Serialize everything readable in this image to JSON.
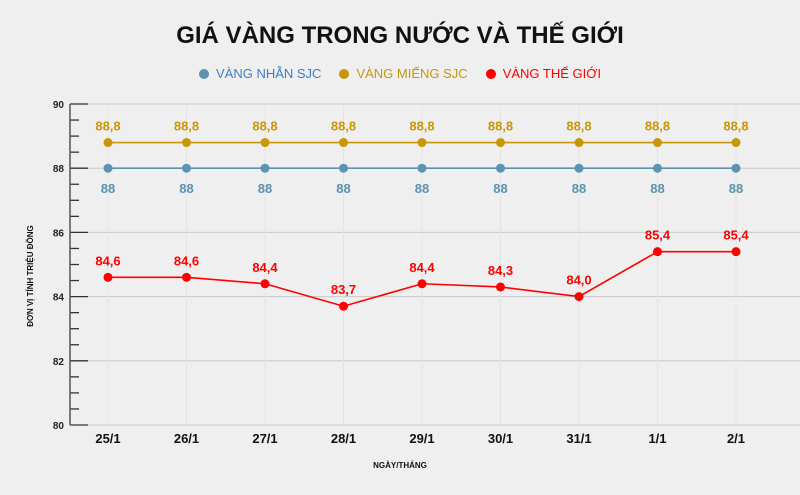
{
  "chart_data": {
    "type": "line",
    "title": "GIÁ VÀNG TRONG NƯỚC VÀ THẾ GIỚI",
    "xlabel": "NGÀY/THÁNG",
    "ylabel": "ĐƠN VỊ TÍNH TRIỆU ĐỒNG",
    "categories": [
      "25/1",
      "26/1",
      "27/1",
      "28/1",
      "29/1",
      "30/1",
      "31/1",
      "1/1",
      "2/1"
    ],
    "ylim": [
      80,
      90
    ],
    "yticks": [
      80,
      82,
      84,
      86,
      88,
      90
    ],
    "grid": true,
    "legend_position": "top",
    "series": [
      {
        "name": "VÀNG NHẪN SJC",
        "color": "#5b93b0",
        "text_color": "#3a7fc8",
        "values": [
          88,
          88,
          88,
          88,
          88,
          88,
          88,
          88,
          88
        ],
        "labels": [
          "88",
          "88",
          "88",
          "88",
          "88",
          "88",
          "88",
          "88",
          "88"
        ],
        "label_pos": "below"
      },
      {
        "name": "VÀNG MIẾNG SJC",
        "color": "#c8960a",
        "text_color": "#c8960a",
        "values": [
          88.8,
          88.8,
          88.8,
          88.8,
          88.8,
          88.8,
          88.8,
          88.8,
          88.8
        ],
        "labels": [
          "88,8",
          "88,8",
          "88,8",
          "88,8",
          "88,8",
          "88,8",
          "88,8",
          "88,8",
          "88,8"
        ],
        "label_pos": "above"
      },
      {
        "name": "VÀNG THẾ GIỚI",
        "color": "#ff0000",
        "text_color": "#ff0000",
        "values": [
          84.6,
          84.6,
          84.4,
          83.7,
          84.4,
          84.3,
          84.0,
          85.4,
          85.4
        ],
        "labels": [
          "84,6",
          "84,6",
          "84,4",
          "83,7",
          "84,4",
          "84,3",
          "84,0",
          "85,4",
          "85,4"
        ],
        "label_pos": "above"
      }
    ]
  }
}
